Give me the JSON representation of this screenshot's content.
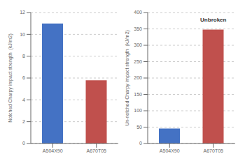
{
  "chart_data": [
    {
      "type": "bar",
      "categories": [
        "A504X90",
        "A670T05"
      ],
      "values": [
        11.0,
        5.8
      ],
      "colors": [
        "#4472C4",
        "#C0504D"
      ],
      "ylabel": "Notched Charpy impact strength  (kJ/m2)",
      "ylim": [
        0,
        12
      ],
      "yticks": [
        0,
        2,
        4,
        6,
        8,
        10,
        12
      ],
      "grid": true
    },
    {
      "type": "bar",
      "categories": [
        "A504X90",
        "A670T05"
      ],
      "values": [
        46,
        348
      ],
      "colors": [
        "#4472C4",
        "#C0504D"
      ],
      "ylabel": "Un-notched Charpy impact strength  (kJ/m2)",
      "ylim": [
        0,
        400
      ],
      "yticks": [
        0,
        50,
        100,
        150,
        200,
        250,
        300,
        350,
        400
      ],
      "grid": true,
      "annotations": [
        {
          "text": "Unbroken",
          "x": "A670T05",
          "y": 362
        }
      ]
    }
  ]
}
